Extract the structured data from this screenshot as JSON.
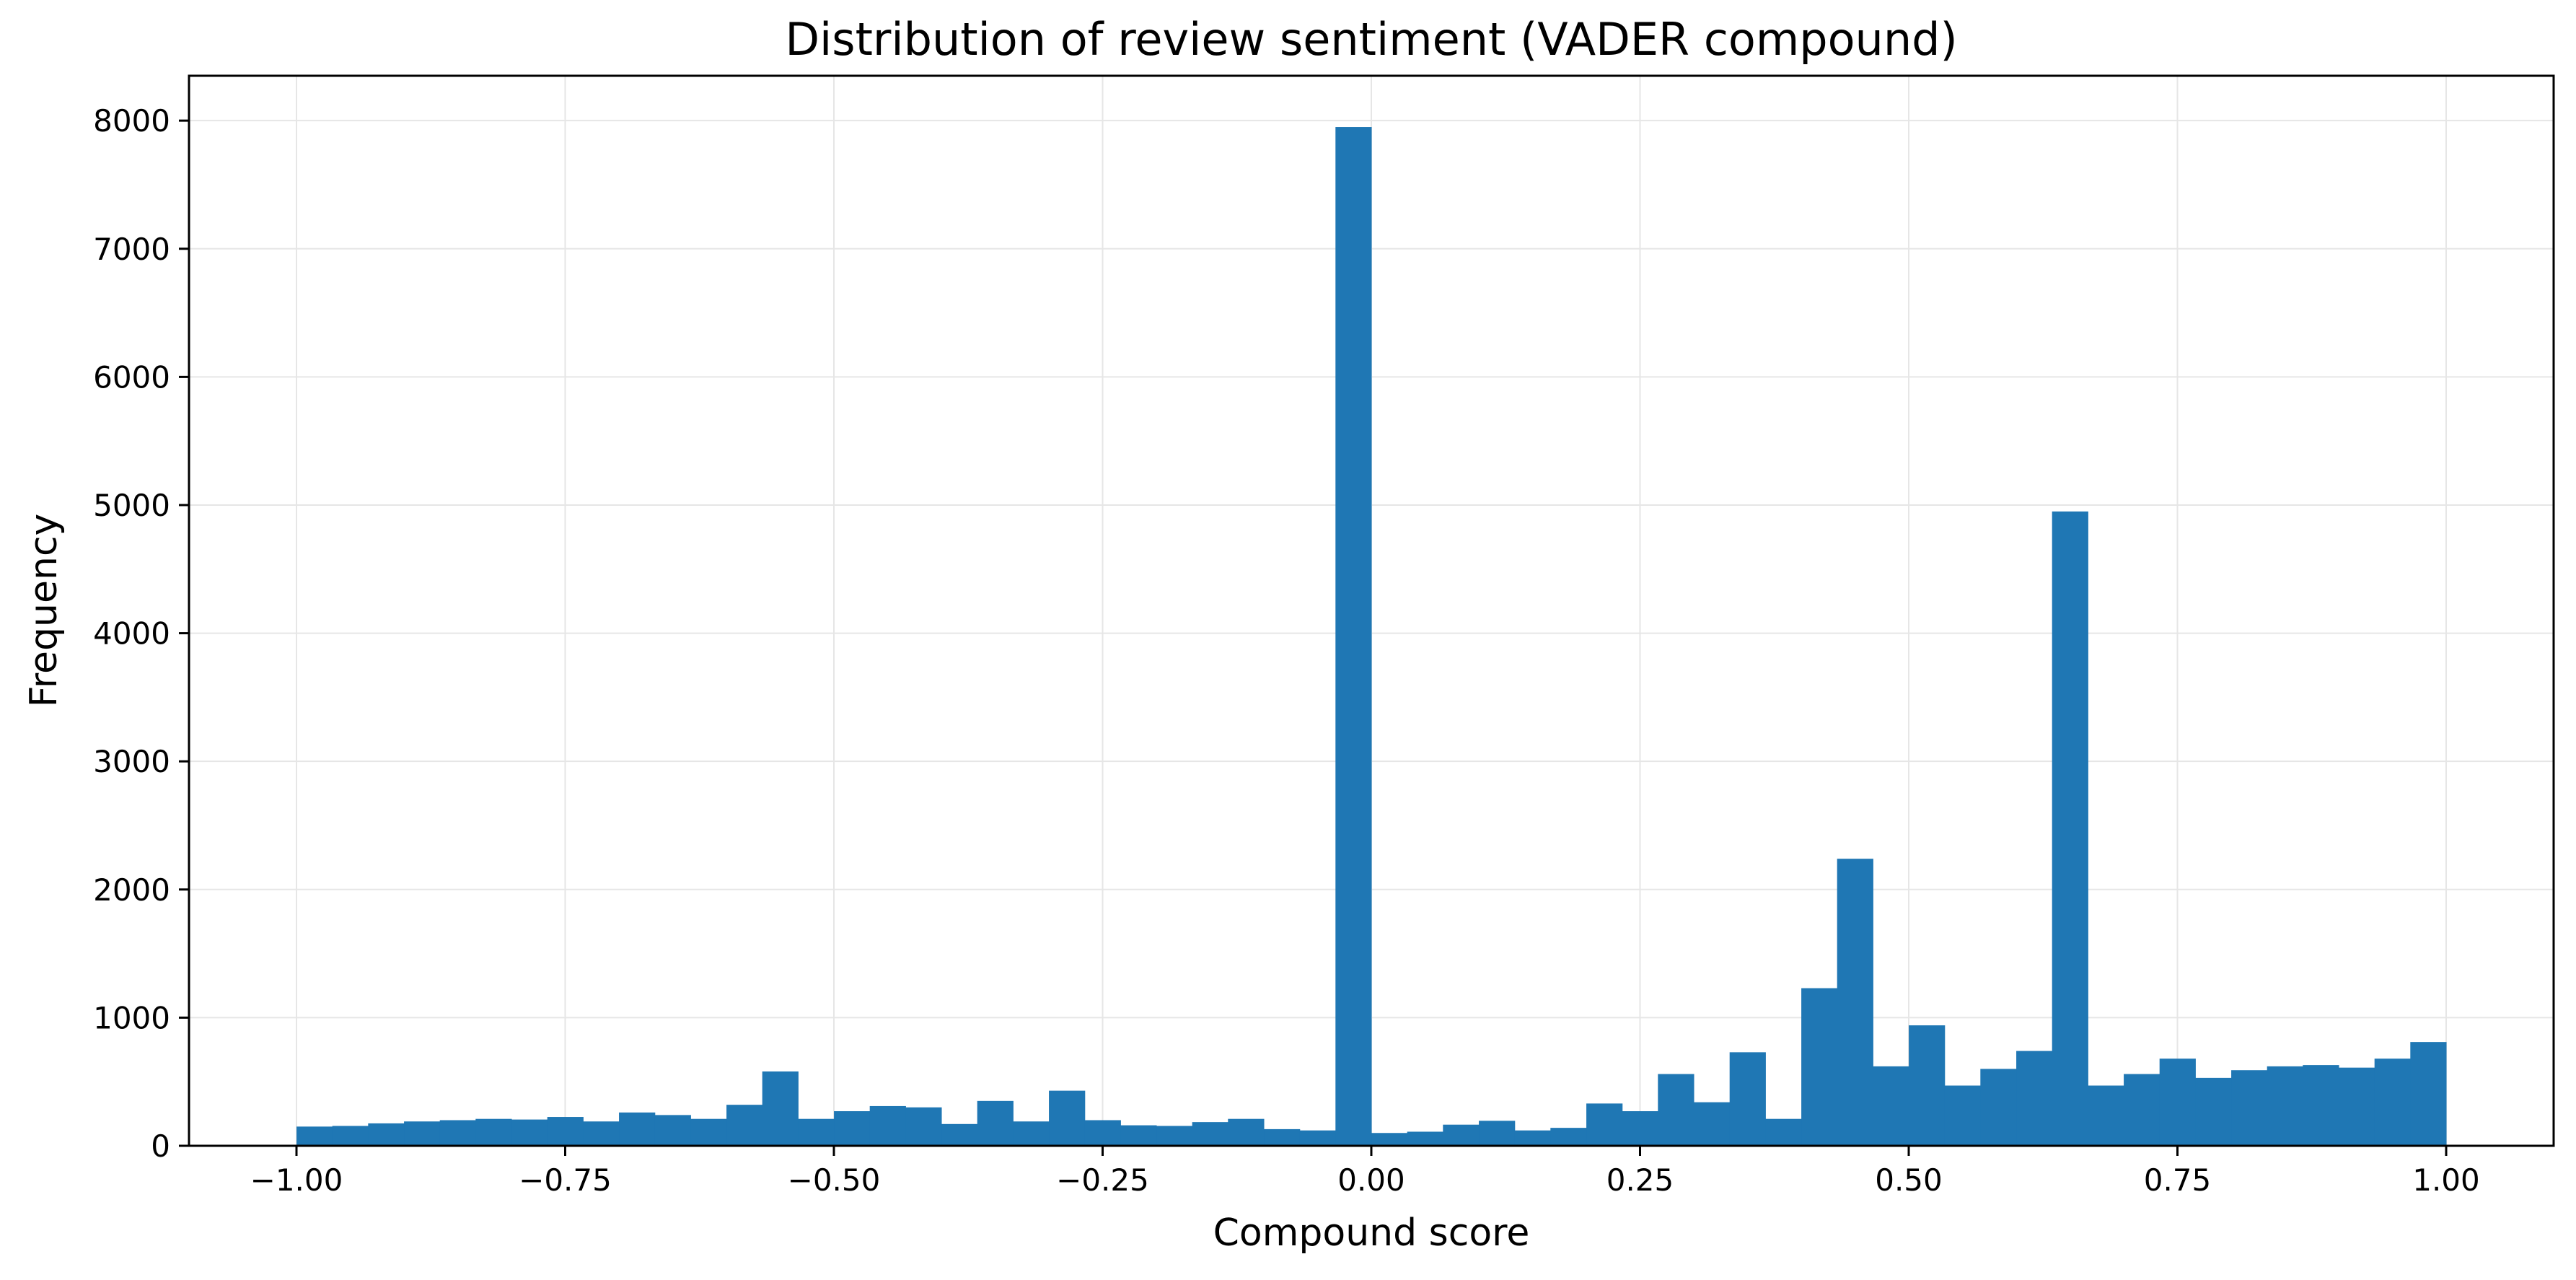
{
  "chart_data": {
    "type": "bar",
    "title": "Distribution of review sentiment (VADER compound)",
    "xlabel": "Compound score",
    "ylabel": "Frequency",
    "xlim": [
      -1.1,
      1.1
    ],
    "ylim": [
      0,
      8350
    ],
    "bin_width": 0.0333,
    "x": [
      -0.9833,
      -0.95,
      -0.9167,
      -0.8833,
      -0.85,
      -0.8167,
      -0.7833,
      -0.75,
      -0.7167,
      -0.6833,
      -0.65,
      -0.6167,
      -0.5833,
      -0.55,
      -0.5167,
      -0.4833,
      -0.45,
      -0.4167,
      -0.3833,
      -0.35,
      -0.3167,
      -0.2833,
      -0.25,
      -0.2167,
      -0.1833,
      -0.15,
      -0.1167,
      -0.0833,
      -0.05,
      -0.0167,
      0.0167,
      0.05,
      0.0833,
      0.1167,
      0.15,
      0.1833,
      0.2167,
      0.25,
      0.2833,
      0.3167,
      0.35,
      0.3833,
      0.4167,
      0.45,
      0.4833,
      0.5167,
      0.55,
      0.5833,
      0.6167,
      0.65,
      0.6833,
      0.7167,
      0.75,
      0.7833,
      0.8167,
      0.85,
      0.8833,
      0.9167,
      0.95,
      0.9833
    ],
    "values": [
      150,
      155,
      175,
      190,
      200,
      210,
      205,
      225,
      190,
      260,
      240,
      210,
      320,
      580,
      210,
      270,
      310,
      300,
      170,
      350,
      190,
      430,
      200,
      160,
      155,
      185,
      210,
      130,
      120,
      7950,
      100,
      110,
      165,
      195,
      120,
      140,
      330,
      270,
      560,
      340,
      730,
      210,
      1230,
      2240,
      620,
      940,
      470,
      600,
      740,
      4950,
      470,
      560,
      680,
      530,
      590,
      620,
      630,
      610,
      680,
      810
    ],
    "xticks": [
      -1.0,
      -0.75,
      -0.5,
      -0.25,
      0.0,
      0.25,
      0.5,
      0.75,
      1.0
    ],
    "xtick_labels": [
      "−1.00",
      "−0.75",
      "−0.50",
      "−0.25",
      "0.00",
      "0.25",
      "0.50",
      "0.75",
      "1.00"
    ],
    "yticks": [
      0,
      1000,
      2000,
      3000,
      4000,
      5000,
      6000,
      7000,
      8000
    ],
    "ytick_labels": [
      "0",
      "1000",
      "2000",
      "3000",
      "4000",
      "5000",
      "6000",
      "7000",
      "8000"
    ],
    "grid": true,
    "bar_color": "#1f77b4",
    "grid_color": "#e6e6e6"
  }
}
